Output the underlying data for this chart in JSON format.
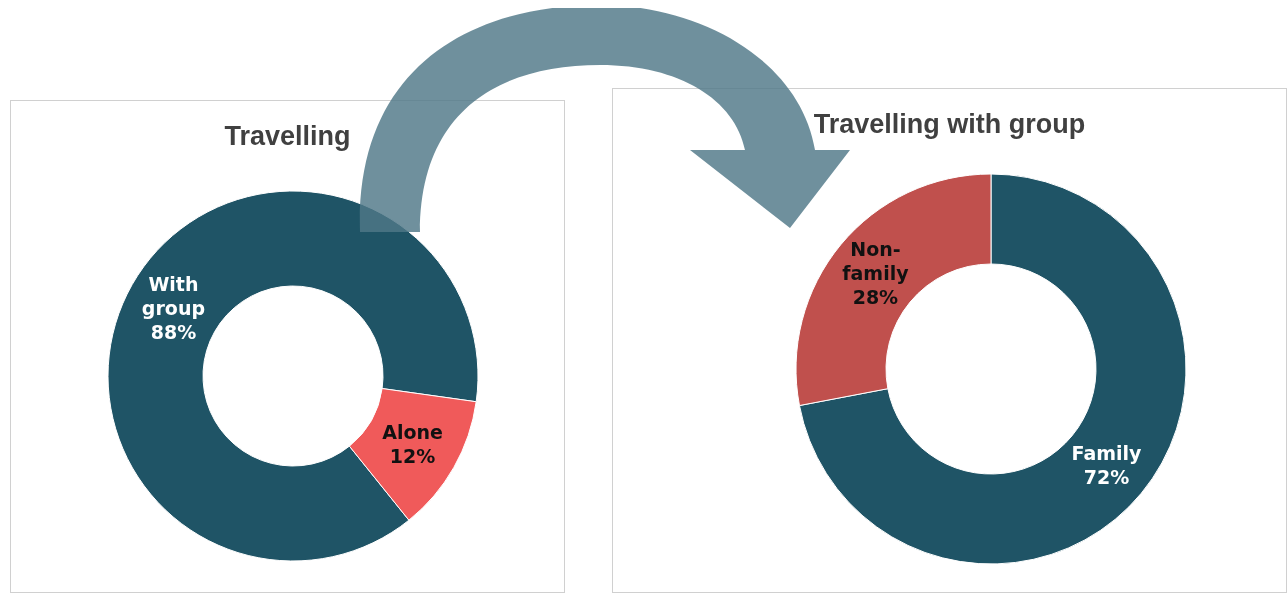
{
  "chart_data": [
    {
      "type": "donut",
      "title": "Travelling",
      "categories": [
        "With group",
        "Alone"
      ],
      "values": [
        88,
        12
      ],
      "colors": [
        "#1f5466",
        "#f05a5a"
      ],
      "value_labels": [
        "88%",
        "12%"
      ]
    },
    {
      "type": "donut",
      "title": "Travelling with group",
      "categories": [
        "Family",
        "Non-family"
      ],
      "values": [
        72,
        28
      ],
      "colors": [
        "#1f5466",
        "#c0504d"
      ],
      "value_labels": [
        "72%",
        "28%"
      ]
    }
  ]
}
